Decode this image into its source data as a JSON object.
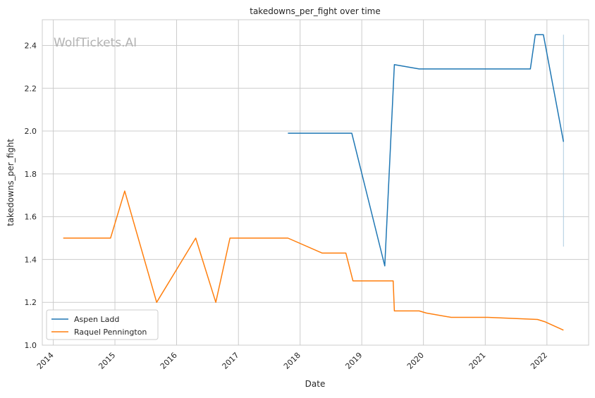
{
  "chart_data": {
    "type": "line",
    "title": "takedowns_per_fight over time",
    "xlabel": "Date",
    "ylabel": "takedowns_per_fight",
    "watermark": "WolfTickets.AI",
    "xlim": [
      "2013-10-28",
      "2022-09-05"
    ],
    "ylim": [
      1.0,
      2.52
    ],
    "x_ticks": [
      "2014",
      "2015",
      "2016",
      "2017",
      "2018",
      "2019",
      "2020",
      "2021",
      "2022"
    ],
    "y_ticks": [
      "1.0",
      "1.2",
      "1.4",
      "1.6",
      "1.8",
      "2.0",
      "2.2",
      "2.4"
    ],
    "grid": true,
    "legend_position": "lower-left",
    "series": [
      {
        "name": "Aspen Ladd",
        "color": "#1f77b4",
        "points": [
          [
            "2017-10-21",
            1.99
          ],
          [
            "2018-11-03",
            1.99
          ],
          [
            "2019-05-17",
            1.37
          ],
          [
            "2019-07-13",
            2.31
          ],
          [
            "2019-12-07",
            2.29
          ],
          [
            "2021-09-25",
            2.29
          ],
          [
            "2021-10-24",
            2.45
          ],
          [
            "2021-12-11",
            2.45
          ],
          [
            "2022-04-09",
            1.95
          ]
        ]
      },
      {
        "name": "Raquel Pennington",
        "color": "#ff7f0e",
        "points": [
          [
            "2014-03-01",
            1.5
          ],
          [
            "2014-12-06",
            1.5
          ],
          [
            "2015-02-28",
            1.72
          ],
          [
            "2015-09-05",
            1.2
          ],
          [
            "2016-04-23",
            1.5
          ],
          [
            "2016-08-20",
            1.2
          ],
          [
            "2016-11-12",
            1.5
          ],
          [
            "2017-10-21",
            1.5
          ],
          [
            "2018-05-12",
            1.43
          ],
          [
            "2018-09-29",
            1.43
          ],
          [
            "2018-11-10",
            1.3
          ],
          [
            "2019-07-06",
            1.3
          ],
          [
            "2019-07-13",
            1.16
          ],
          [
            "2019-12-07",
            1.16
          ],
          [
            "2020-01-18",
            1.15
          ],
          [
            "2020-06-13",
            1.13
          ],
          [
            "2021-01-16",
            1.13
          ],
          [
            "2021-11-06",
            1.12
          ],
          [
            "2021-12-18",
            1.11
          ],
          [
            "2022-04-09",
            1.07
          ]
        ]
      }
    ],
    "annotations": [
      {
        "type": "vertical-range",
        "x": "2022-04-09",
        "y0": 1.46,
        "y1": 2.45,
        "color": "#aecbe0"
      }
    ]
  }
}
